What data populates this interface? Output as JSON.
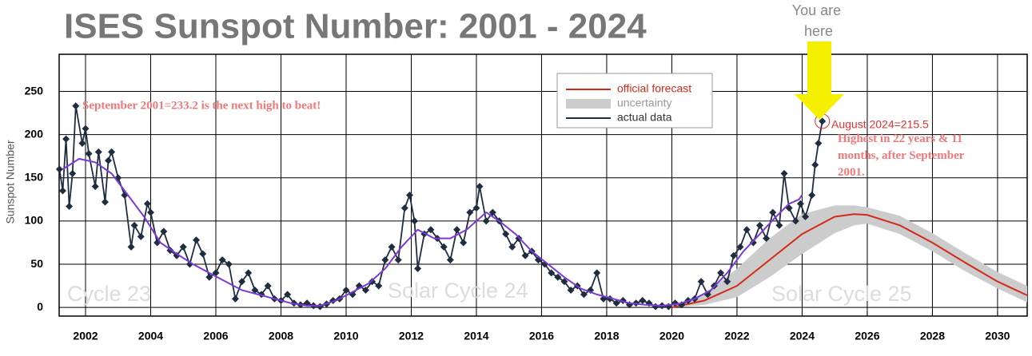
{
  "chart_data": {
    "type": "line",
    "title": "ISES Sunspot Number: 2001 - 2024",
    "y_label": "Sunspot Number",
    "xlim": [
      2001.19,
      2030.91
    ],
    "ylim": [
      -10,
      293
    ],
    "xticks": [
      2002,
      2004,
      2006,
      2008,
      2010,
      2012,
      2014,
      2016,
      2018,
      2020,
      2022,
      2024,
      2026,
      2028,
      2030
    ],
    "yticks": [
      0,
      50,
      100,
      150,
      200,
      250
    ],
    "grid": true,
    "series": [
      {
        "name": "official forecast",
        "color": "#d42a1a",
        "x": [
          2020.0,
          2021.0,
          2022.0,
          2023.0,
          2024.0,
          2025.0,
          2025.6,
          2026.0,
          2027.0,
          2028.0,
          2029.0,
          2030.0,
          2030.91
        ],
        "values": [
          0,
          8,
          25,
          55,
          85,
          105,
          108,
          107,
          95,
          75,
          52,
          30,
          14
        ]
      },
      {
        "name": "uncertainty",
        "color": "#cccccc",
        "x": [
          2020.0,
          2021.0,
          2022.0,
          2023.0,
          2024.0,
          2025.0,
          2025.6,
          2026.0,
          2027.0,
          2028.0,
          2029.0,
          2030.0,
          2030.91
        ],
        "upper": [
          2,
          15,
          45,
          80,
          108,
          118,
          118,
          116,
          106,
          86,
          63,
          41,
          25
        ],
        "lower": [
          0,
          3,
          12,
          35,
          62,
          86,
          95,
          97,
          85,
          65,
          42,
          22,
          6
        ]
      },
      {
        "name": "actual data",
        "color": "#1f2d40",
        "markers": true,
        "x": [
          2001.2,
          2001.3,
          2001.4,
          2001.5,
          2001.6,
          2001.7,
          2001.9,
          2002.0,
          2002.1,
          2002.3,
          2002.4,
          2002.6,
          2002.7,
          2002.8,
          2003.0,
          2003.2,
          2003.4,
          2003.5,
          2003.7,
          2003.9,
          2004.0,
          2004.2,
          2004.4,
          2004.6,
          2004.8,
          2005.0,
          2005.2,
          2005.4,
          2005.6,
          2005.8,
          2006.0,
          2006.2,
          2006.4,
          2006.6,
          2006.8,
          2007.0,
          2007.2,
          2007.4,
          2007.6,
          2007.8,
          2008.0,
          2008.2,
          2008.4,
          2008.6,
          2008.8,
          2009.0,
          2009.2,
          2009.4,
          2009.6,
          2009.8,
          2010.0,
          2010.2,
          2010.4,
          2010.6,
          2010.8,
          2011.0,
          2011.2,
          2011.4,
          2011.6,
          2011.8,
          2011.95,
          2012.1,
          2012.2,
          2012.4,
          2012.6,
          2012.8,
          2013.0,
          2013.2,
          2013.4,
          2013.6,
          2013.8,
          2014.0,
          2014.1,
          2014.3,
          2014.5,
          2014.7,
          2014.9,
          2015.1,
          2015.3,
          2015.5,
          2015.7,
          2015.9,
          2016.1,
          2016.3,
          2016.5,
          2016.7,
          2016.9,
          2017.1,
          2017.3,
          2017.5,
          2017.7,
          2017.9,
          2018.1,
          2018.3,
          2018.5,
          2018.7,
          2018.9,
          2019.1,
          2019.3,
          2019.5,
          2019.7,
          2019.9,
          2020.1,
          2020.3,
          2020.5,
          2020.7,
          2020.9,
          2021.1,
          2021.3,
          2021.5,
          2021.7,
          2021.9,
          2022.1,
          2022.3,
          2022.5,
          2022.7,
          2022.9,
          2023.1,
          2023.3,
          2023.45,
          2023.6,
          2023.8,
          2023.95,
          2024.1,
          2024.3,
          2024.4,
          2024.5,
          2024.62
        ],
        "values": [
          160,
          135,
          195,
          117,
          155,
          233.2,
          190,
          207,
          178,
          140,
          180,
          122,
          170,
          180,
          150,
          130,
          70,
          95,
          82,
          120,
          110,
          75,
          88,
          66,
          60,
          70,
          50,
          78,
          62,
          35,
          40,
          55,
          50,
          10,
          30,
          40,
          20,
          15,
          25,
          10,
          8,
          15,
          5,
          3,
          5,
          2,
          1,
          4,
          8,
          10,
          20,
          15,
          25,
          20,
          30,
          25,
          55,
          70,
          55,
          115,
          130,
          100,
          45,
          85,
          90,
          80,
          70,
          55,
          90,
          75,
          110,
          115,
          140,
          100,
          110,
          100,
          85,
          70,
          80,
          60,
          65,
          55,
          50,
          40,
          35,
          30,
          20,
          25,
          15,
          20,
          40,
          10,
          10,
          5,
          8,
          3,
          5,
          8,
          5,
          1,
          2,
          1,
          5,
          3,
          8,
          10,
          30,
          15,
          25,
          40,
          30,
          60,
          70,
          90,
          75,
          95,
          80,
          110,
          95,
          155,
          115,
          100,
          120,
          105,
          130,
          165,
          190,
          215.5
        ]
      },
      {
        "color": "#7a3ad8",
        "x": [
          2001.3,
          2001.8,
          2002.3,
          2002.8,
          2003.3,
          2003.8,
          2004.3,
          2004.8,
          2005.3,
          2005.8,
          2006.3,
          2006.8,
          2007.3,
          2007.8,
          2008.3,
          2008.8,
          2009.2,
          2009.7,
          2010.2,
          2010.7,
          2011.2,
          2011.7,
          2012.2,
          2012.7,
          2013.2,
          2013.7,
          2014.3,
          2014.7,
          2015.2,
          2015.7,
          2016.2,
          2016.7,
          2017.2,
          2017.7,
          2018.2,
          2018.7,
          2019.2,
          2019.7,
          2020.2,
          2020.7,
          2021.2,
          2021.7,
          2022.2,
          2022.7,
          2023.2,
          2023.6,
          2023.9,
          2024.0
        ],
        "values": [
          160,
          172,
          168,
          155,
          130,
          105,
          75,
          62,
          50,
          40,
          30,
          20,
          15,
          10,
          5,
          2,
          2,
          8,
          18,
          28,
          45,
          70,
          90,
          80,
          80,
          90,
          110,
          100,
          85,
          65,
          50,
          35,
          22,
          15,
          10,
          5,
          3,
          2,
          4,
          10,
          20,
          40,
          65,
          85,
          105,
          120,
          125,
          130
        ]
      }
    ],
    "annotations": {
      "high": "September 2001=233.2 is the next high to beat!",
      "latest": "August 2024=215.5",
      "highest": [
        "Highest in 22 years & 11",
        "months, after September",
        "2001."
      ],
      "here": [
        "You are",
        "here"
      ],
      "cycles": [
        "Cycle 23",
        "Solar Cycle 24",
        "Solar Cycle 25"
      ]
    }
  }
}
